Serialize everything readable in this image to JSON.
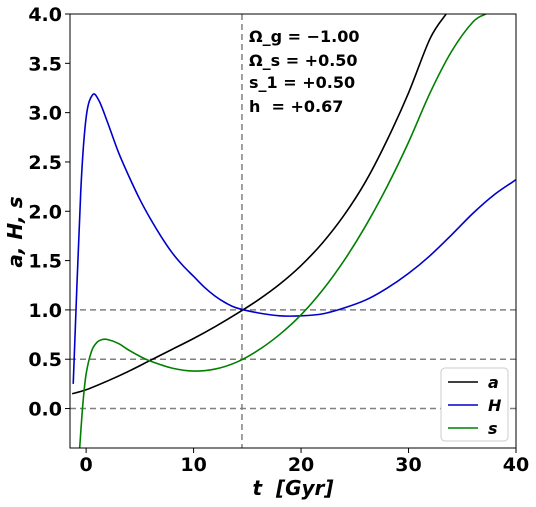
{
  "chart_data": {
    "type": "line",
    "xlabel": "t  [Gyr]",
    "ylabel": "a, H, s",
    "xlim": [
      -1.5,
      40
    ],
    "ylim": [
      -0.4,
      4.0
    ],
    "xticks": [
      0,
      10,
      20,
      30,
      40
    ],
    "xtick_labels": [
      "0",
      "10",
      "20",
      "30",
      "40"
    ],
    "yticks": [
      0.0,
      0.5,
      1.0,
      1.5,
      2.0,
      2.5,
      3.0,
      3.5,
      4.0
    ],
    "ytick_labels": [
      "0.0",
      "0.5",
      "1.0",
      "1.5",
      "2.0",
      "2.5",
      "3.0",
      "3.5",
      "4.0"
    ],
    "grid": false,
    "legend_position": "lower-right",
    "annotations": [
      "Ω_g = −1.00",
      "Ω_s = +0.50",
      "s_1 = +0.50",
      "h  = +0.67"
    ],
    "reference_lines": {
      "horizontal": [
        0.0,
        0.5,
        1.0
      ],
      "vertical": [
        14.5
      ],
      "style": "dashed",
      "color": "#808080"
    },
    "series": [
      {
        "name": "a",
        "color": "#000000",
        "x": [
          -1.3,
          0,
          2,
          4,
          6,
          8,
          10,
          12,
          14,
          16,
          18,
          20,
          22,
          24,
          26,
          28,
          30,
          32,
          33.5
        ],
        "y": [
          0.15,
          0.19,
          0.28,
          0.38,
          0.49,
          0.6,
          0.71,
          0.83,
          0.96,
          1.1,
          1.26,
          1.45,
          1.68,
          1.96,
          2.3,
          2.72,
          3.2,
          3.75,
          4.0
        ]
      },
      {
        "name": "H",
        "color": "#0000cc",
        "x": [
          -1.2,
          -0.5,
          0,
          0.6,
          1.2,
          2,
          3,
          4,
          5,
          6,
          7,
          8,
          9,
          10,
          11,
          12,
          13,
          14,
          16,
          18,
          20,
          22,
          24,
          26,
          28,
          30,
          32,
          34,
          36,
          38,
          40
        ],
        "y": [
          0.25,
          2.2,
          2.95,
          3.18,
          3.12,
          2.9,
          2.6,
          2.35,
          2.12,
          1.92,
          1.74,
          1.58,
          1.45,
          1.34,
          1.23,
          1.14,
          1.07,
          1.02,
          0.97,
          0.94,
          0.94,
          0.96,
          1.02,
          1.1,
          1.22,
          1.37,
          1.55,
          1.76,
          1.98,
          2.17,
          2.32
        ]
      },
      {
        "name": "s",
        "color": "#008000",
        "x": [
          -0.6,
          -0.3,
          0,
          0.5,
          1,
          1.5,
          2,
          3,
          4,
          5,
          6,
          8,
          10,
          12,
          14,
          16,
          18,
          20,
          22,
          24,
          26,
          28,
          30,
          32,
          34,
          36,
          37.2
        ],
        "y": [
          -0.4,
          0.05,
          0.35,
          0.58,
          0.67,
          0.7,
          0.7,
          0.66,
          0.59,
          0.53,
          0.48,
          0.41,
          0.38,
          0.4,
          0.47,
          0.59,
          0.75,
          0.95,
          1.2,
          1.5,
          1.85,
          2.25,
          2.7,
          3.2,
          3.62,
          3.92,
          4.0
        ]
      }
    ]
  }
}
